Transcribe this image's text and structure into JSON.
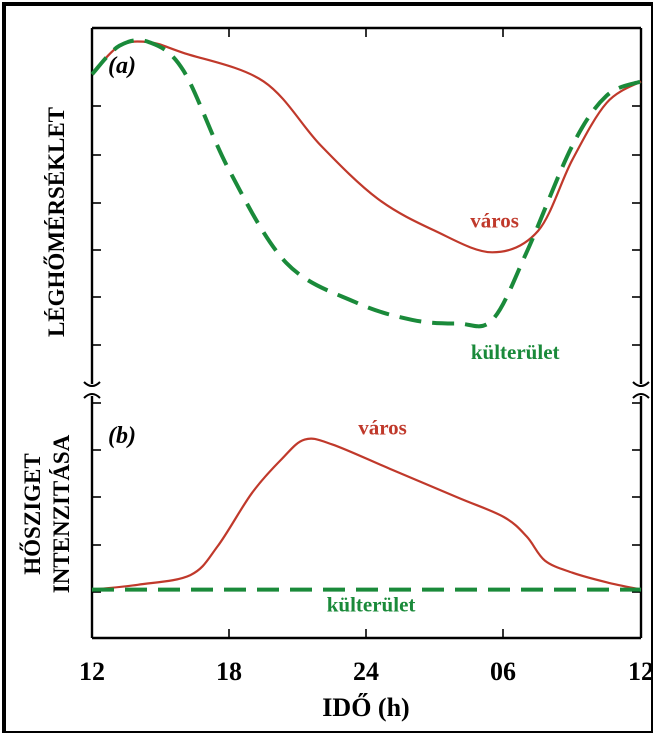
{
  "chart_data": [
    {
      "type": "line",
      "panel_label": "(a)",
      "ylabel": "LÉGHŐMÉRSÉKLET",
      "xlabel": "IDŐ (h)",
      "x_ticks": [
        "12",
        "18",
        "24",
        "06",
        "12"
      ],
      "xlim": [
        12,
        36
      ],
      "ylim": [
        0,
        10
      ],
      "series": [
        {
          "name": "város",
          "color": "#c0392b",
          "style": "solid",
          "points": [
            [
              12,
              8.7
            ],
            [
              13.2,
              9.5
            ],
            [
              14.5,
              9.6
            ],
            [
              16,
              9.3
            ],
            [
              19.5,
              8.5
            ],
            [
              22,
              6.7
            ],
            [
              24.5,
              5.2
            ],
            [
              27,
              4.3
            ],
            [
              29.5,
              3.7
            ],
            [
              31.5,
              4.3
            ],
            [
              33,
              6.3
            ],
            [
              34.5,
              7.9
            ],
            [
              36,
              8.5
            ]
          ]
        },
        {
          "name": "külterület",
          "color": "#1a8a3a",
          "style": "dashed",
          "points": [
            [
              12,
              8.7
            ],
            [
              13.2,
              9.5
            ],
            [
              14.5,
              9.6
            ],
            [
              16,
              8.8
            ],
            [
              18,
              6.0
            ],
            [
              20.5,
              3.4
            ],
            [
              23.5,
              2.3
            ],
            [
              26,
              1.8
            ],
            [
              28,
              1.7
            ],
            [
              29.5,
              1.8
            ],
            [
              31,
              3.7
            ],
            [
              33,
              6.7
            ],
            [
              34.5,
              8.1
            ],
            [
              36,
              8.5
            ]
          ]
        }
      ],
      "annotations": [
        {
          "text": "város",
          "series": "város",
          "x": 29.6,
          "y": 4.4
        },
        {
          "text": "külterület",
          "series": "külterület",
          "x": 30.5,
          "y": 0.7
        }
      ]
    },
    {
      "type": "line",
      "panel_label": "(b)",
      "ylabel_lines": [
        "HŐSZIGET",
        "INTENZITÁSA"
      ],
      "xlabel": "IDŐ (h)",
      "x_ticks": [
        "12",
        "18",
        "24",
        "06",
        "12"
      ],
      "xlim": [
        12,
        36
      ],
      "ylim": [
        -1,
        4
      ],
      "series": [
        {
          "name": "város",
          "color": "#c0392b",
          "style": "solid",
          "points": [
            [
              12,
              0.0
            ],
            [
              14,
              0.1
            ],
            [
              16.3,
              0.3
            ],
            [
              17.5,
              0.9
            ],
            [
              19,
              2.0
            ],
            [
              20.3,
              2.7
            ],
            [
              21.3,
              3.1
            ],
            [
              22.5,
              3.0
            ],
            [
              25,
              2.5
            ],
            [
              28,
              1.9
            ],
            [
              30,
              1.5
            ],
            [
              31,
              1.1
            ],
            [
              31.8,
              0.6
            ],
            [
              33,
              0.35
            ],
            [
              34.5,
              0.15
            ],
            [
              36,
              0.0
            ]
          ]
        },
        {
          "name": "külterület",
          "color": "#1a8a3a",
          "style": "dashed",
          "points": [
            [
              12,
              0.0
            ],
            [
              36,
              0.0
            ]
          ]
        }
      ],
      "annotations": [
        {
          "text": "város",
          "series": "város",
          "x": 24.7,
          "y": 3.2
        },
        {
          "text": "külterület",
          "series": "külterület",
          "x": 24.2,
          "y": -0.45
        }
      ]
    }
  ]
}
